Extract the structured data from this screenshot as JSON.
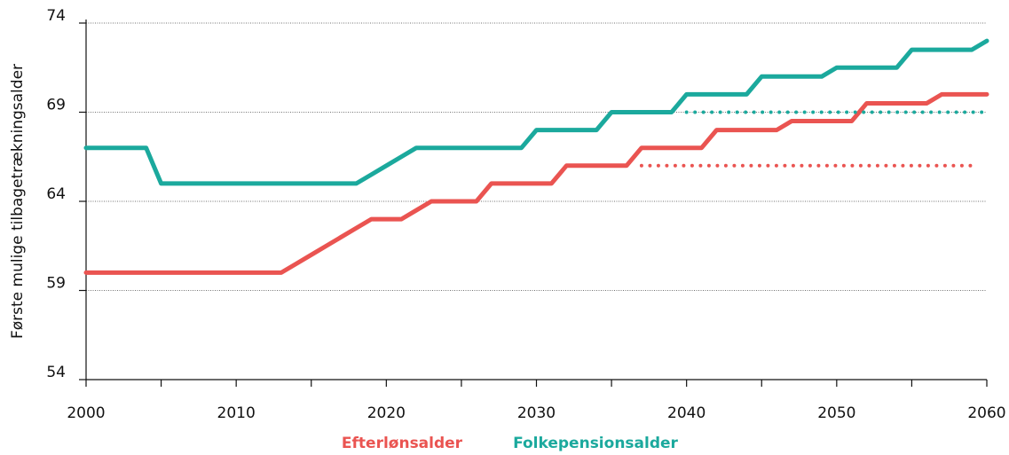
{
  "chart_data": {
    "type": "line",
    "y_label": "Første mulige tilbagetrækningsalder",
    "x": [
      2000,
      2001,
      2002,
      2003,
      2004,
      2005,
      2006,
      2007,
      2008,
      2009,
      2010,
      2011,
      2012,
      2013,
      2014,
      2015,
      2016,
      2017,
      2018,
      2019,
      2020,
      2021,
      2022,
      2023,
      2024,
      2025,
      2026,
      2027,
      2028,
      2029,
      2030,
      2031,
      2032,
      2033,
      2034,
      2035,
      2036,
      2037,
      2038,
      2039,
      2040,
      2041,
      2042,
      2043,
      2044,
      2045,
      2046,
      2047,
      2048,
      2049,
      2050,
      2051,
      2052,
      2053,
      2054,
      2055,
      2056,
      2057,
      2058,
      2059,
      2060
    ],
    "series": [
      {
        "name": "Efterlønsalder",
        "color": "#ea5451",
        "style": "solid",
        "values": [
          60,
          60,
          60,
          60,
          60,
          60,
          60,
          60,
          60,
          60,
          60,
          60,
          60,
          60,
          60.5,
          61,
          61.5,
          62,
          62.5,
          63,
          63,
          63,
          63.5,
          64,
          64,
          64,
          64,
          65,
          65,
          65,
          65,
          65,
          66,
          66,
          66,
          66,
          66,
          67,
          67,
          67,
          67,
          67,
          68,
          68,
          68,
          68,
          68,
          68.5,
          68.5,
          68.5,
          68.5,
          68.5,
          69.5,
          69.5,
          69.5,
          69.5,
          69.5,
          70,
          70,
          70,
          70
        ]
      },
      {
        "name": "Folkepensionsalder",
        "color": "#1ba99d",
        "style": "solid",
        "values": [
          67,
          67,
          67,
          67,
          67,
          65,
          65,
          65,
          65,
          65,
          65,
          65,
          65,
          65,
          65,
          65,
          65,
          65,
          65,
          65.5,
          66,
          66.5,
          67,
          67,
          67,
          67,
          67,
          67,
          67,
          67,
          68,
          68,
          68,
          68,
          68,
          69,
          69,
          69,
          69,
          69,
          70,
          70,
          70,
          70,
          70,
          71,
          71,
          71,
          71,
          71,
          71.5,
          71.5,
          71.5,
          71.5,
          71.5,
          72.5,
          72.5,
          72.5,
          72.5,
          72.5,
          73
        ]
      },
      {
        "color": "#ea5451",
        "style": "dotted",
        "values": [
          null,
          null,
          null,
          null,
          null,
          null,
          null,
          null,
          null,
          null,
          null,
          null,
          null,
          null,
          null,
          null,
          null,
          null,
          null,
          null,
          null,
          null,
          null,
          null,
          null,
          null,
          null,
          null,
          null,
          null,
          null,
          null,
          null,
          null,
          null,
          null,
          null,
          66,
          66,
          66,
          66,
          66,
          66,
          66,
          66,
          66,
          66,
          66,
          66,
          66,
          66,
          66,
          66,
          66,
          66,
          66,
          66,
          66,
          66,
          66,
          null
        ]
      },
      {
        "color": "#1ba99d",
        "style": "dotted",
        "values": [
          null,
          null,
          null,
          null,
          null,
          null,
          null,
          null,
          null,
          null,
          null,
          null,
          null,
          null,
          null,
          null,
          null,
          null,
          null,
          null,
          null,
          null,
          null,
          null,
          null,
          null,
          null,
          null,
          null,
          null,
          null,
          null,
          null,
          null,
          null,
          null,
          null,
          null,
          null,
          null,
          69,
          69,
          69,
          69,
          69,
          69,
          69,
          69,
          69,
          69,
          69,
          69,
          69,
          69,
          69,
          69,
          69,
          69,
          69,
          69,
          69
        ]
      }
    ],
    "xlim": [
      2000,
      2060
    ],
    "xticks": [
      2000,
      2010,
      2020,
      2030,
      2040,
      2050,
      2060
    ],
    "xminorticks": [
      2005,
      2015,
      2025,
      2035,
      2045,
      2055
    ],
    "ylim": [
      54,
      74
    ],
    "yticks": [
      54,
      59,
      64,
      69,
      74
    ],
    "grid": true,
    "legend": "bottom"
  }
}
